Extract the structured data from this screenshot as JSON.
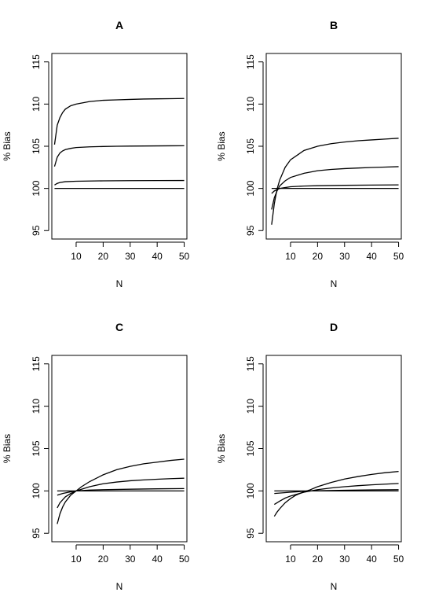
{
  "chart_data": [
    {
      "type": "line",
      "title": "A",
      "xlabel": "N",
      "ylabel": "% Bias",
      "xlim": [
        1,
        51
      ],
      "ylim": [
        94,
        116
      ],
      "xticks": [
        10,
        20,
        30,
        40,
        50
      ],
      "yticks": [
        95,
        100,
        105,
        110,
        115
      ],
      "grid": false,
      "series": [
        {
          "x": [
            2,
            3,
            4,
            5,
            6,
            8,
            10,
            15,
            20,
            25,
            30,
            35,
            40,
            45,
            50
          ],
          "values": [
            105.2,
            107.5,
            108.4,
            109.0,
            109.4,
            109.8,
            110.0,
            110.3,
            110.45,
            110.5,
            110.55,
            110.6,
            110.62,
            110.64,
            110.66
          ]
        },
        {
          "x": [
            2,
            3,
            4,
            5,
            6,
            8,
            10,
            15,
            20,
            25,
            30,
            35,
            40,
            45,
            50
          ],
          "values": [
            102.6,
            103.7,
            104.2,
            104.45,
            104.6,
            104.75,
            104.85,
            104.93,
            104.97,
            105.0,
            105.02,
            105.03,
            105.04,
            105.05,
            105.06
          ]
        },
        {
          "x": [
            2,
            3,
            4,
            6,
            10,
            20,
            30,
            40,
            50
          ],
          "values": [
            100.4,
            100.6,
            100.7,
            100.8,
            100.85,
            100.9,
            100.92,
            100.93,
            100.94
          ]
        },
        {
          "x": [
            2,
            50
          ],
          "values": [
            100.0,
            100.0
          ]
        }
      ]
    },
    {
      "type": "line",
      "title": "B",
      "xlabel": "N",
      "ylabel": "% Bias",
      "xlim": [
        1,
        51
      ],
      "ylim": [
        94,
        116
      ],
      "xticks": [
        10,
        20,
        30,
        40,
        50
      ],
      "yticks": [
        95,
        100,
        105,
        110,
        115
      ],
      "grid": false,
      "series": [
        {
          "x": [
            3,
            4,
            5,
            6,
            8,
            10,
            15,
            20,
            25,
            30,
            35,
            40,
            45,
            50
          ],
          "values": [
            95.7,
            98.2,
            99.9,
            101.0,
            102.5,
            103.4,
            104.5,
            105.0,
            105.3,
            105.5,
            105.65,
            105.75,
            105.85,
            105.95
          ]
        },
        {
          "x": [
            3,
            4,
            5,
            6,
            8,
            10,
            15,
            20,
            25,
            30,
            35,
            40,
            45,
            50
          ],
          "values": [
            97.5,
            98.9,
            99.7,
            100.3,
            100.9,
            101.3,
            101.8,
            102.1,
            102.25,
            102.35,
            102.42,
            102.48,
            102.53,
            102.58
          ]
        },
        {
          "x": [
            3,
            4,
            6,
            8,
            10,
            15,
            20,
            30,
            40,
            50
          ],
          "values": [
            99.4,
            99.7,
            100.0,
            100.1,
            100.2,
            100.28,
            100.32,
            100.37,
            100.4,
            100.42
          ]
        },
        {
          "x": [
            3,
            50
          ],
          "values": [
            100.0,
            100.0
          ]
        }
      ]
    },
    {
      "type": "line",
      "title": "C",
      "xlabel": "N",
      "ylabel": "% Bias",
      "xlim": [
        1,
        51
      ],
      "ylim": [
        94,
        116
      ],
      "xticks": [
        10,
        20,
        30,
        40,
        50
      ],
      "yticks": [
        95,
        100,
        105,
        110,
        115
      ],
      "grid": false,
      "series": [
        {
          "x": [
            3,
            4,
            5,
            6,
            8,
            10,
            12,
            15,
            20,
            25,
            30,
            35,
            40,
            45,
            50
          ],
          "values": [
            96.1,
            97.3,
            98.1,
            98.7,
            99.5,
            100.0,
            100.5,
            101.1,
            101.9,
            102.5,
            102.9,
            103.2,
            103.4,
            103.6,
            103.75
          ]
        },
        {
          "x": [
            3,
            4,
            6,
            8,
            10,
            15,
            20,
            25,
            30,
            35,
            40,
            45,
            50
          ],
          "values": [
            98.0,
            98.6,
            99.3,
            99.7,
            100.0,
            100.5,
            100.85,
            101.05,
            101.2,
            101.3,
            101.38,
            101.45,
            101.5
          ]
        },
        {
          "x": [
            3,
            5,
            8,
            10,
            15,
            20,
            30,
            40,
            50
          ],
          "values": [
            99.5,
            99.7,
            99.9,
            100.0,
            100.1,
            100.15,
            100.2,
            100.25,
            100.28
          ]
        },
        {
          "x": [
            3,
            50
          ],
          "values": [
            100.0,
            100.0
          ]
        }
      ]
    },
    {
      "type": "line",
      "title": "D",
      "xlabel": "N",
      "ylabel": "% Bias",
      "xlim": [
        1,
        51
      ],
      "ylim": [
        94,
        116
      ],
      "xticks": [
        10,
        20,
        30,
        40,
        50
      ],
      "yticks": [
        95,
        100,
        105,
        110,
        115
      ],
      "grid": false,
      "series": [
        {
          "x": [
            4,
            5,
            6,
            8,
            10,
            12,
            15,
            17,
            20,
            25,
            30,
            35,
            40,
            45,
            50
          ],
          "values": [
            97.0,
            97.5,
            97.9,
            98.6,
            99.1,
            99.5,
            99.9,
            100.1,
            100.5,
            101.0,
            101.4,
            101.7,
            101.95,
            102.15,
            102.3
          ]
        },
        {
          "x": [
            4,
            6,
            8,
            10,
            15,
            20,
            25,
            30,
            35,
            40,
            45,
            50
          ],
          "values": [
            98.4,
            98.8,
            99.15,
            99.4,
            99.85,
            100.15,
            100.35,
            100.5,
            100.62,
            100.72,
            100.8,
            100.88
          ]
        },
        {
          "x": [
            4,
            10,
            16,
            20,
            30,
            40,
            50
          ],
          "values": [
            99.7,
            99.85,
            99.98,
            100.02,
            100.08,
            100.12,
            100.15
          ]
        },
        {
          "x": [
            4,
            50
          ],
          "values": [
            100.0,
            100.0
          ]
        }
      ]
    }
  ]
}
